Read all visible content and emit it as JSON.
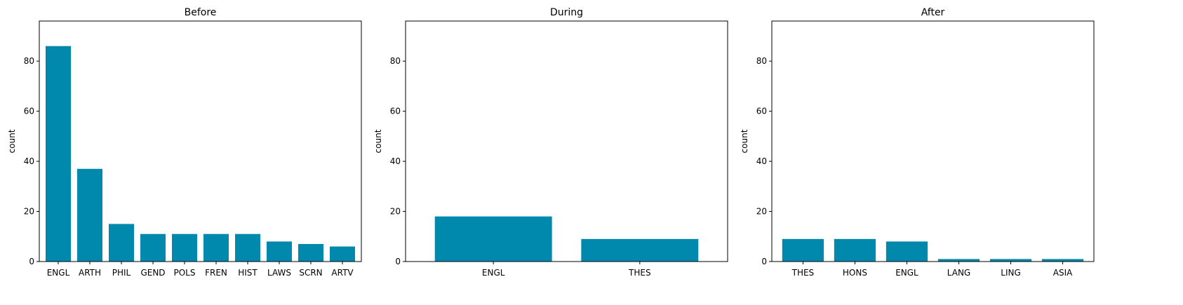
{
  "chart_data": [
    {
      "type": "bar",
      "title": "Before",
      "xlabel": "",
      "ylabel": "count",
      "ylim": [
        0,
        96
      ],
      "yticks": [
        0,
        20,
        40,
        60,
        80
      ],
      "categories": [
        "ENGL",
        "ARTH",
        "PHIL",
        "GEND",
        "POLS",
        "FREN",
        "HIST",
        "LAWS",
        "SCRN",
        "ARTV"
      ],
      "values": [
        86,
        37,
        15,
        11,
        11,
        11,
        11,
        8,
        7,
        6
      ]
    },
    {
      "type": "bar",
      "title": "During",
      "xlabel": "",
      "ylabel": "count",
      "ylim": [
        0,
        96
      ],
      "yticks": [
        0,
        20,
        40,
        60,
        80
      ],
      "categories": [
        "ENGL",
        "THES"
      ],
      "values": [
        18,
        9
      ]
    },
    {
      "type": "bar",
      "title": "After",
      "xlabel": "",
      "ylabel": "count",
      "ylim": [
        0,
        96
      ],
      "yticks": [
        0,
        20,
        40,
        60,
        80
      ],
      "categories": [
        "THES",
        "HONS",
        "ENGL",
        "LANG",
        "LING",
        "ASIA"
      ],
      "values": [
        9,
        9,
        8,
        1,
        1,
        1
      ]
    }
  ],
  "colors": {
    "bar": "#0088ad"
  }
}
